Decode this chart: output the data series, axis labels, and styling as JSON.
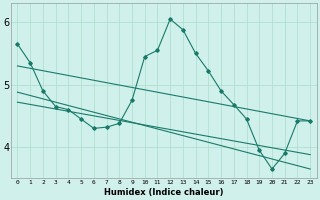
{
  "xlabel": "Humidex (Indice chaleur)",
  "bg_color": "#cff0eb",
  "grid_color": "#aaddcc",
  "line_color": "#1a7a6a",
  "xlim": [
    -0.5,
    23.5
  ],
  "ylim": [
    3.5,
    6.3
  ],
  "yticks": [
    4,
    5,
    6
  ],
  "xtick_labels": [
    "0",
    "1",
    "2",
    "3",
    "4",
    "5",
    "6",
    "7",
    "8",
    "9",
    "10",
    "11",
    "12",
    "13",
    "14",
    "15",
    "16",
    "17",
    "18",
    "19",
    "20",
    "21",
    "22",
    "23"
  ],
  "series1_x": [
    0,
    1,
    2,
    3,
    4,
    5,
    6,
    7,
    8,
    9,
    10,
    11,
    12,
    13,
    14,
    15,
    16,
    17,
    18,
    19,
    20,
    21,
    22,
    23
  ],
  "series1_y": [
    5.65,
    5.35,
    4.9,
    4.65,
    4.6,
    4.45,
    4.3,
    4.32,
    4.38,
    4.75,
    5.45,
    5.55,
    6.05,
    5.88,
    5.5,
    5.22,
    4.9,
    4.68,
    4.45,
    3.95,
    3.65,
    3.9,
    4.42,
    4.42
  ],
  "line1_x": [
    0,
    23
  ],
  "line1_y": [
    5.3,
    4.42
  ],
  "line2_x": [
    0,
    23
  ],
  "line2_y": [
    4.88,
    3.65
  ],
  "line3_x": [
    0,
    23
  ],
  "line3_y": [
    4.72,
    3.88
  ]
}
